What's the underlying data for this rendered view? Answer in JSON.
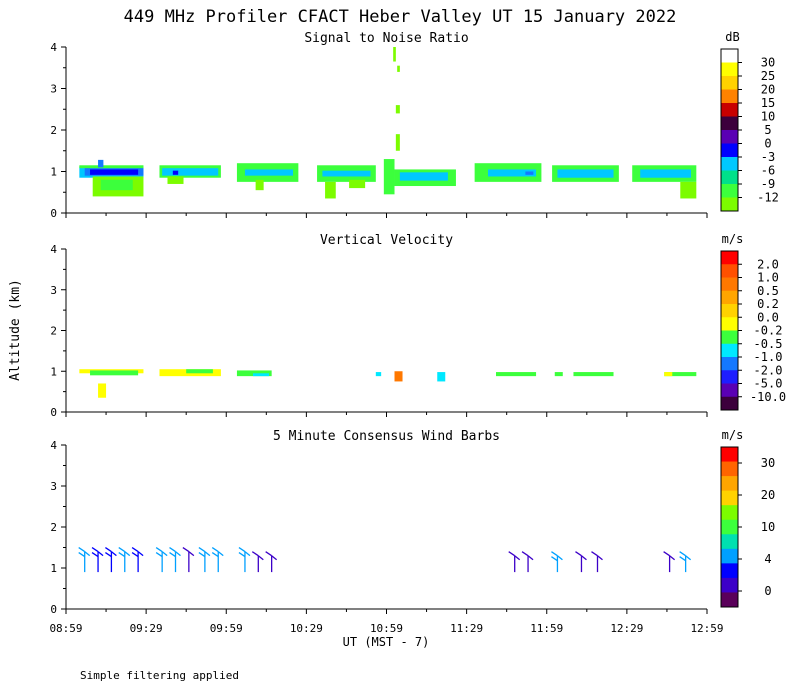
{
  "title": "449 MHz Profiler CFACT Heber Valley UT 15 January 2022",
  "footer_note": "Simple filtering applied",
  "colors": {
    "snr_scale": [
      "#7cfc00",
      "#3cff3c",
      "#00e08a",
      "#00c8ff",
      "#1478ff",
      "#0000ff",
      "#5a00b4",
      "#780096",
      "#3c003c",
      "#c80000",
      "#ff3c00",
      "#ff8200",
      "#ffb400",
      "#ffd200",
      "#ffff00",
      "#ffffff"
    ],
    "vel_scale": [
      "#3c003c",
      "#5a00b4",
      "#1e1eff",
      "#1478ff",
      "#00e8ff",
      "#00ff64",
      "#3cff3c",
      "#ffff00",
      "#ffd200",
      "#ffa500",
      "#ff7800",
      "#ff5000",
      "#ff0000"
    ],
    "wind_scale": [
      "#5a005a",
      "#3c00c8",
      "#0000ff",
      "#00a0ff",
      "#00e0b0",
      "#3cff3c",
      "#7cfc00",
      "#ffd200",
      "#ffa500",
      "#ff6400",
      "#ff0000"
    ]
  },
  "chart_data": [
    {
      "id": "snr",
      "type": "heatmap",
      "title": "Signal to Noise Ratio",
      "xlabel": "UT  (MST - 7)",
      "ylabel": "Altitude (km)",
      "xlim": [
        0,
        240
      ],
      "ylim": [
        0,
        4
      ],
      "x_ticks": [
        0,
        30,
        60,
        90,
        120,
        150,
        180,
        210,
        240
      ],
      "x_tick_labels": [
        "08:59",
        "09:29",
        "09:59",
        "10:29",
        "10:59",
        "11:29",
        "11:59",
        "12:29",
        "12:59"
      ],
      "y_ticks": [
        0,
        1,
        2,
        3,
        4
      ],
      "y_tick_labels": [
        "0",
        "1",
        "2",
        "3",
        "4"
      ],
      "colorbar": {
        "unit": "dB",
        "labels": [
          "30",
          "25",
          "20",
          "15",
          "10",
          "5",
          "0",
          "-3",
          "-6",
          "-9",
          "-12"
        ],
        "colors": [
          "#ffffff",
          "#ffff00",
          "#ffd200",
          "#ff8200",
          "#c80000",
          "#3c003c",
          "#5a00b4",
          "#0000ff",
          "#00c8ff",
          "#00e08a",
          "#3cff3c",
          "#7cfc00"
        ]
      },
      "cells": [
        {
          "t0": 5,
          "t1": 29,
          "z0": 0.85,
          "z1": 1.12,
          "color": "#00c8ff"
        },
        {
          "t0": 7,
          "t1": 29,
          "z0": 0.9,
          "z1": 1.1,
          "color": "#1478ff"
        },
        {
          "t0": 9,
          "t1": 27,
          "z0": 0.92,
          "z1": 1.05,
          "color": "#0000ff"
        },
        {
          "t0": 5,
          "t1": 29,
          "z0": 1.08,
          "z1": 1.15,
          "color": "#3cff3c"
        },
        {
          "t0": 10,
          "t1": 29,
          "z0": 0.4,
          "z1": 0.88,
          "color": "#7cfc00"
        },
        {
          "t0": 13,
          "t1": 25,
          "z0": 0.55,
          "z1": 0.8,
          "color": "#3cff3c"
        },
        {
          "t0": 12,
          "t1": 14,
          "z0": 1.1,
          "z1": 1.28,
          "color": "#1478ff"
        },
        {
          "t0": 35,
          "t1": 58,
          "z0": 0.85,
          "z1": 1.15,
          "color": "#3cff3c"
        },
        {
          "t0": 36,
          "t1": 57,
          "z0": 0.9,
          "z1": 1.08,
          "color": "#00c8ff"
        },
        {
          "t0": 40,
          "t1": 42,
          "z0": 0.92,
          "z1": 1.02,
          "color": "#0000ff"
        },
        {
          "t0": 38,
          "t1": 44,
          "z0": 0.7,
          "z1": 0.88,
          "color": "#7cfc00"
        },
        {
          "t0": 64,
          "t1": 87,
          "z0": 0.75,
          "z1": 1.2,
          "color": "#3cff3c"
        },
        {
          "t0": 67,
          "t1": 85,
          "z0": 0.9,
          "z1": 1.05,
          "color": "#00c8ff"
        },
        {
          "t0": 71,
          "t1": 74,
          "z0": 0.55,
          "z1": 0.8,
          "color": "#7cfc00"
        },
        {
          "t0": 94,
          "t1": 116,
          "z0": 0.75,
          "z1": 1.15,
          "color": "#3cff3c"
        },
        {
          "t0": 96,
          "t1": 114,
          "z0": 0.88,
          "z1": 1.02,
          "color": "#00c8ff"
        },
        {
          "t0": 97,
          "t1": 101,
          "z0": 0.35,
          "z1": 0.75,
          "color": "#7cfc00"
        },
        {
          "t0": 106,
          "t1": 112,
          "z0": 0.6,
          "z1": 0.8,
          "color": "#7cfc00"
        },
        {
          "t0": 119,
          "t1": 123,
          "z0": 0.45,
          "z1": 1.3,
          "color": "#3cff3c"
        },
        {
          "t0": 123,
          "t1": 146,
          "z0": 0.65,
          "z1": 1.05,
          "color": "#3cff3c"
        },
        {
          "t0": 125,
          "t1": 143,
          "z0": 0.78,
          "z1": 0.98,
          "color": "#00c8ff"
        },
        {
          "t0": 123.5,
          "t1": 125,
          "z0": 1.5,
          "z1": 1.9,
          "color": "#7cfc00"
        },
        {
          "t0": 123.5,
          "t1": 125,
          "z0": 2.4,
          "z1": 2.6,
          "color": "#7cfc00"
        },
        {
          "t0": 122.5,
          "t1": 123.5,
          "z0": 3.65,
          "z1": 4.0,
          "color": "#7cfc00"
        },
        {
          "t0": 124,
          "t1": 125,
          "z0": 3.4,
          "z1": 3.55,
          "color": "#7cfc00"
        },
        {
          "t0": 153,
          "t1": 178,
          "z0": 0.75,
          "z1": 1.2,
          "color": "#3cff3c"
        },
        {
          "t0": 158,
          "t1": 176,
          "z0": 0.88,
          "z1": 1.05,
          "color": "#00c8ff"
        },
        {
          "t0": 172,
          "t1": 175,
          "z0": 0.92,
          "z1": 1.0,
          "color": "#1478ff"
        },
        {
          "t0": 182,
          "t1": 207,
          "z0": 0.75,
          "z1": 1.15,
          "color": "#3cff3c"
        },
        {
          "t0": 184,
          "t1": 205,
          "z0": 0.85,
          "z1": 1.05,
          "color": "#00c8ff"
        },
        {
          "t0": 212,
          "t1": 236,
          "z0": 0.75,
          "z1": 1.15,
          "color": "#3cff3c"
        },
        {
          "t0": 215,
          "t1": 234,
          "z0": 0.85,
          "z1": 1.05,
          "color": "#00c8ff"
        },
        {
          "t0": 230,
          "t1": 236,
          "z0": 0.35,
          "z1": 0.75,
          "color": "#7cfc00"
        }
      ]
    },
    {
      "id": "vel",
      "type": "heatmap",
      "title": "Vertical Velocity",
      "xlabel": "UT  (MST - 7)",
      "ylabel": "Altitude (km)",
      "xlim": [
        0,
        240
      ],
      "ylim": [
        0,
        4
      ],
      "x_ticks": [
        0,
        30,
        60,
        90,
        120,
        150,
        180,
        210,
        240
      ],
      "x_tick_labels": [
        "08:59",
        "09:29",
        "09:59",
        "10:29",
        "10:59",
        "11:29",
        "11:59",
        "12:29",
        "12:59"
      ],
      "y_ticks": [
        0,
        1,
        2,
        3,
        4
      ],
      "y_tick_labels": [
        "0",
        "1",
        "2",
        "3",
        "4"
      ],
      "colorbar": {
        "unit": "m/s",
        "labels": [
          "2.0",
          "1.0",
          "0.5",
          "0.2",
          "0.0",
          "-0.2",
          "-0.5",
          "-1.0",
          "-2.0",
          "-5.0",
          "-10.0"
        ],
        "colors": [
          "#ff0000",
          "#ff5000",
          "#ff7800",
          "#ffa500",
          "#ffd200",
          "#ffff00",
          "#3cff3c",
          "#00e8ff",
          "#1478ff",
          "#1e1eff",
          "#5a00b4",
          "#3c003c"
        ]
      },
      "cells": [
        {
          "t0": 5,
          "t1": 29,
          "z0": 0.95,
          "z1": 1.05,
          "color": "#ffff00"
        },
        {
          "t0": 9,
          "t1": 27,
          "z0": 0.9,
          "z1": 1.02,
          "color": "#3cff3c"
        },
        {
          "t0": 12,
          "t1": 15,
          "z0": 0.35,
          "z1": 0.7,
          "color": "#ffff00"
        },
        {
          "t0": 35,
          "t1": 58,
          "z0": 0.88,
          "z1": 1.05,
          "color": "#ffff00"
        },
        {
          "t0": 45,
          "t1": 55,
          "z0": 0.95,
          "z1": 1.05,
          "color": "#3cff3c"
        },
        {
          "t0": 64,
          "t1": 77,
          "z0": 0.88,
          "z1": 1.02,
          "color": "#3cff3c"
        },
        {
          "t0": 70,
          "t1": 76,
          "z0": 0.88,
          "z1": 0.95,
          "color": "#00e8ff"
        },
        {
          "t0": 116,
          "t1": 118,
          "z0": 0.88,
          "z1": 0.98,
          "color": "#00e8ff"
        },
        {
          "t0": 123,
          "t1": 126,
          "z0": 0.75,
          "z1": 1.0,
          "color": "#ff7800"
        },
        {
          "t0": 139,
          "t1": 142,
          "z0": 0.75,
          "z1": 0.98,
          "color": "#00e8ff"
        },
        {
          "t0": 161,
          "t1": 176,
          "z0": 0.88,
          "z1": 0.98,
          "color": "#3cff3c"
        },
        {
          "t0": 183,
          "t1": 186,
          "z0": 0.88,
          "z1": 0.98,
          "color": "#3cff3c"
        },
        {
          "t0": 190,
          "t1": 205,
          "z0": 0.88,
          "z1": 0.98,
          "color": "#3cff3c"
        },
        {
          "t0": 224,
          "t1": 236,
          "z0": 0.88,
          "z1": 0.98,
          "color": "#3cff3c"
        },
        {
          "t0": 224,
          "t1": 227,
          "z0": 0.88,
          "z1": 0.98,
          "color": "#ffff00"
        }
      ]
    },
    {
      "id": "wind",
      "type": "scatter",
      "title": "5 Minute Consensus Wind Barbs",
      "xlabel": "UT  (MST - 7)",
      "ylabel": "Altitude (km)",
      "xlim": [
        0,
        240
      ],
      "ylim": [
        0,
        4
      ],
      "x_ticks": [
        0,
        30,
        60,
        90,
        120,
        150,
        180,
        210,
        240
      ],
      "x_tick_labels": [
        "08:59",
        "09:29",
        "09:59",
        "10:29",
        "10:59",
        "11:29",
        "11:59",
        "12:29",
        "12:59"
      ],
      "y_ticks": [
        0,
        1,
        2,
        3,
        4
      ],
      "y_tick_labels": [
        "0",
        "1",
        "2",
        "3",
        "4"
      ],
      "colorbar": {
        "unit": "m/s",
        "labels": [
          "30",
          "20",
          "10",
          "4",
          "0"
        ],
        "colors": [
          "#ff0000",
          "#ff6400",
          "#ffa500",
          "#ffd200",
          "#7cfc00",
          "#3cff3c",
          "#00e0b0",
          "#00a0ff",
          "#0000ff",
          "#3c00c8",
          "#5a005a"
        ]
      },
      "barbs": [
        {
          "t": 7,
          "z": 1.4,
          "speed": 6,
          "color": "#00a0ff"
        },
        {
          "t": 12,
          "z": 1.4,
          "speed": 5,
          "color": "#0000ff"
        },
        {
          "t": 17,
          "z": 1.4,
          "speed": 6,
          "color": "#0000ff"
        },
        {
          "t": 22,
          "z": 1.4,
          "speed": 5,
          "color": "#00a0ff"
        },
        {
          "t": 27,
          "z": 1.4,
          "speed": 6,
          "color": "#0000ff"
        },
        {
          "t": 36,
          "z": 1.4,
          "speed": 5,
          "color": "#00a0ff"
        },
        {
          "t": 41,
          "z": 1.4,
          "speed": 5,
          "color": "#00a0ff"
        },
        {
          "t": 46,
          "z": 1.4,
          "speed": 4,
          "color": "#3c00c8"
        },
        {
          "t": 52,
          "z": 1.4,
          "speed": 5,
          "color": "#00a0ff"
        },
        {
          "t": 57,
          "z": 1.4,
          "speed": 5,
          "color": "#00a0ff"
        },
        {
          "t": 67,
          "z": 1.4,
          "speed": 5,
          "color": "#00a0ff"
        },
        {
          "t": 72,
          "z": 1.3,
          "speed": 4,
          "color": "#3c00c8"
        },
        {
          "t": 77,
          "z": 1.3,
          "speed": 4,
          "color": "#3c00c8"
        },
        {
          "t": 168,
          "z": 1.3,
          "speed": 4,
          "color": "#3c00c8"
        },
        {
          "t": 173,
          "z": 1.3,
          "speed": 4,
          "color": "#3c00c8"
        },
        {
          "t": 184,
          "z": 1.3,
          "speed": 5,
          "color": "#00a0ff"
        },
        {
          "t": 193,
          "z": 1.3,
          "speed": 4,
          "color": "#3c00c8"
        },
        {
          "t": 199,
          "z": 1.3,
          "speed": 4,
          "color": "#3c00c8"
        },
        {
          "t": 226,
          "z": 1.3,
          "speed": 4,
          "color": "#3c00c8"
        },
        {
          "t": 232,
          "z": 1.3,
          "speed": 5,
          "color": "#00a0ff"
        }
      ]
    }
  ]
}
